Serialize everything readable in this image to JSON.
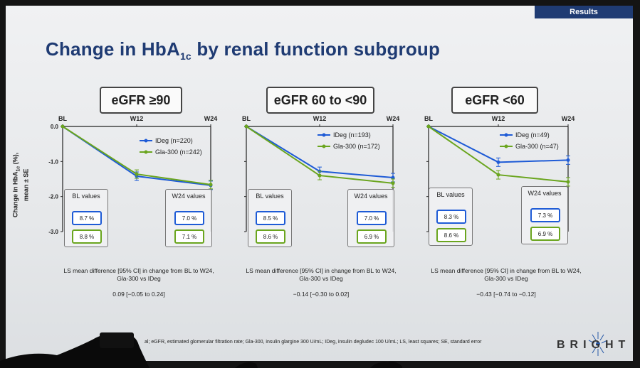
{
  "header": {
    "tab_label": "Results"
  },
  "slide": {
    "title_main": "Change in HbA",
    "title_sub": "1c",
    "title_rest": " by renal function subgroup",
    "y_axis_label_line1": "Change in HbA",
    "y_axis_label_sub": "1c",
    "y_axis_label_line1b": " (%),",
    "y_axis_label_line2": "mean ± SE",
    "footnote": "al; eGFR, estimated glomerular filtration rate; Gla-300, insulin glargine 300 U/mL; IDeg, insulin degludec 100 U/mL; LS, least squares; SE, standard error",
    "brand": "BRIGHT",
    "series_colors": {
      "IDeg": "#1e5bd6",
      "Gla-300": "#6aa51e"
    }
  },
  "chart_data": [
    {
      "type": "line",
      "title": "eGFR ≥90",
      "x": [
        "BL",
        "W12",
        "W24"
      ],
      "y_ticks": [
        "0.0",
        "-1.0",
        "-2.0",
        "-3.0"
      ],
      "ylim": [
        -3.0,
        0.0
      ],
      "series": [
        {
          "name": "IDeg (n=220)",
          "values": [
            0.0,
            -1.42,
            -1.68
          ]
        },
        {
          "name": "Gla-300 (n=242)",
          "values": [
            0.0,
            -1.36,
            -1.66
          ]
        }
      ],
      "bl_values": {
        "title": "BL values",
        "IDeg": "8.7 %",
        "Gla": "8.8 %"
      },
      "w24_values": {
        "title": "W24 values",
        "IDeg": "7.0 %",
        "Gla": "7.1 %"
      },
      "diff_caption_1": "LS mean difference [95% CI] in change from BL to W24,",
      "diff_caption_2": "Gla-300 vs IDeg",
      "diff_value": "0.09 [−0.05 to 0.24]"
    },
    {
      "type": "line",
      "title": "eGFR 60 to <90",
      "x": [
        "BL",
        "W12",
        "W24"
      ],
      "ylim": [
        -3.0,
        0.0
      ],
      "series": [
        {
          "name": "IDeg (n=193)",
          "values": [
            0.0,
            -1.28,
            -1.46
          ]
        },
        {
          "name": "Gla-300 (n=172)",
          "values": [
            0.0,
            -1.4,
            -1.62
          ]
        }
      ],
      "bl_values": {
        "title": "BL values",
        "IDeg": "8.5 %",
        "Gla": "8.6 %"
      },
      "w24_values": {
        "title": "W24 values",
        "IDeg": "7.0 %",
        "Gla": "6.9 %"
      },
      "diff_caption_1": "LS mean difference [95% CI] in change from BL to W24,",
      "diff_caption_2": "Gla-300 vs IDeg",
      "diff_value": "−0.14 [−0.30 to 0.02]"
    },
    {
      "type": "line",
      "title": "eGFR <60",
      "x": [
        "BL",
        "W12",
        "W24"
      ],
      "ylim": [
        -3.0,
        0.0
      ],
      "series": [
        {
          "name": "IDeg (n=49)",
          "values": [
            0.0,
            -1.02,
            -0.96
          ]
        },
        {
          "name": "Gla-300 (n=47)",
          "values": [
            0.0,
            -1.38,
            -1.58
          ]
        }
      ],
      "bl_values": {
        "title": "BL values",
        "IDeg": "8.3 %",
        "Gla": "8.6 %"
      },
      "w24_values": {
        "title": "W24 values",
        "IDeg": "7.3 %",
        "Gla": "6.9 %"
      },
      "diff_caption_1": "LS mean difference [95% CI] in change from BL to W24,",
      "diff_caption_2": "Gla-300 vs IDeg",
      "diff_value": "−0.43 [−0.74 to −0.12]"
    }
  ]
}
